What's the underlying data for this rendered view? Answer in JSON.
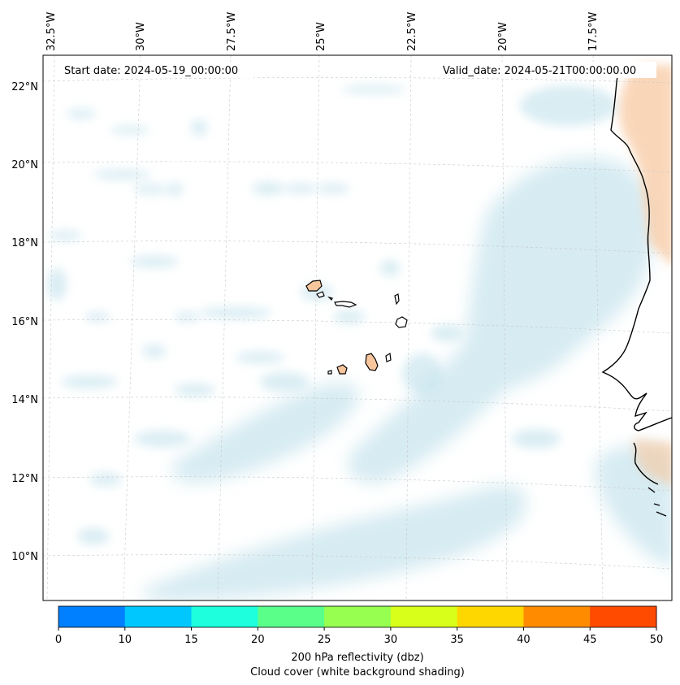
{
  "map": {
    "start_date": "Start date: 2024-05-19_00:00:00",
    "valid_date": "Valid_date: 2024-05-21T00:00:00.00",
    "longitude_labels": [
      "32.5°W",
      "30°W",
      "27.5°W",
      "25°W",
      "22.5°W",
      "20°W",
      "17.5°W"
    ],
    "latitude_labels": [
      "22°N",
      "20°N",
      "18°N",
      "16°N",
      "14°N",
      "12°N",
      "10°N"
    ],
    "colors": {
      "cloud_shade": "#b5dce8",
      "land_orange": "#f8c69c",
      "coastline": "#000000",
      "gridline": "#c8c8c8"
    }
  },
  "colorbar": {
    "ticks": [
      "0",
      "10",
      "15",
      "20",
      "25",
      "30",
      "35",
      "40",
      "45",
      "50"
    ],
    "colors": [
      "#007fff",
      "#00c8ff",
      "#1effdd",
      "#5aff8a",
      "#96ff50",
      "#d8ff1a",
      "#ffd700",
      "#ff8c00",
      "#ff4b00"
    ],
    "label": "200 hPa reflectivity (dbz)",
    "sublabel": "Cloud cover (white background shading)"
  }
}
